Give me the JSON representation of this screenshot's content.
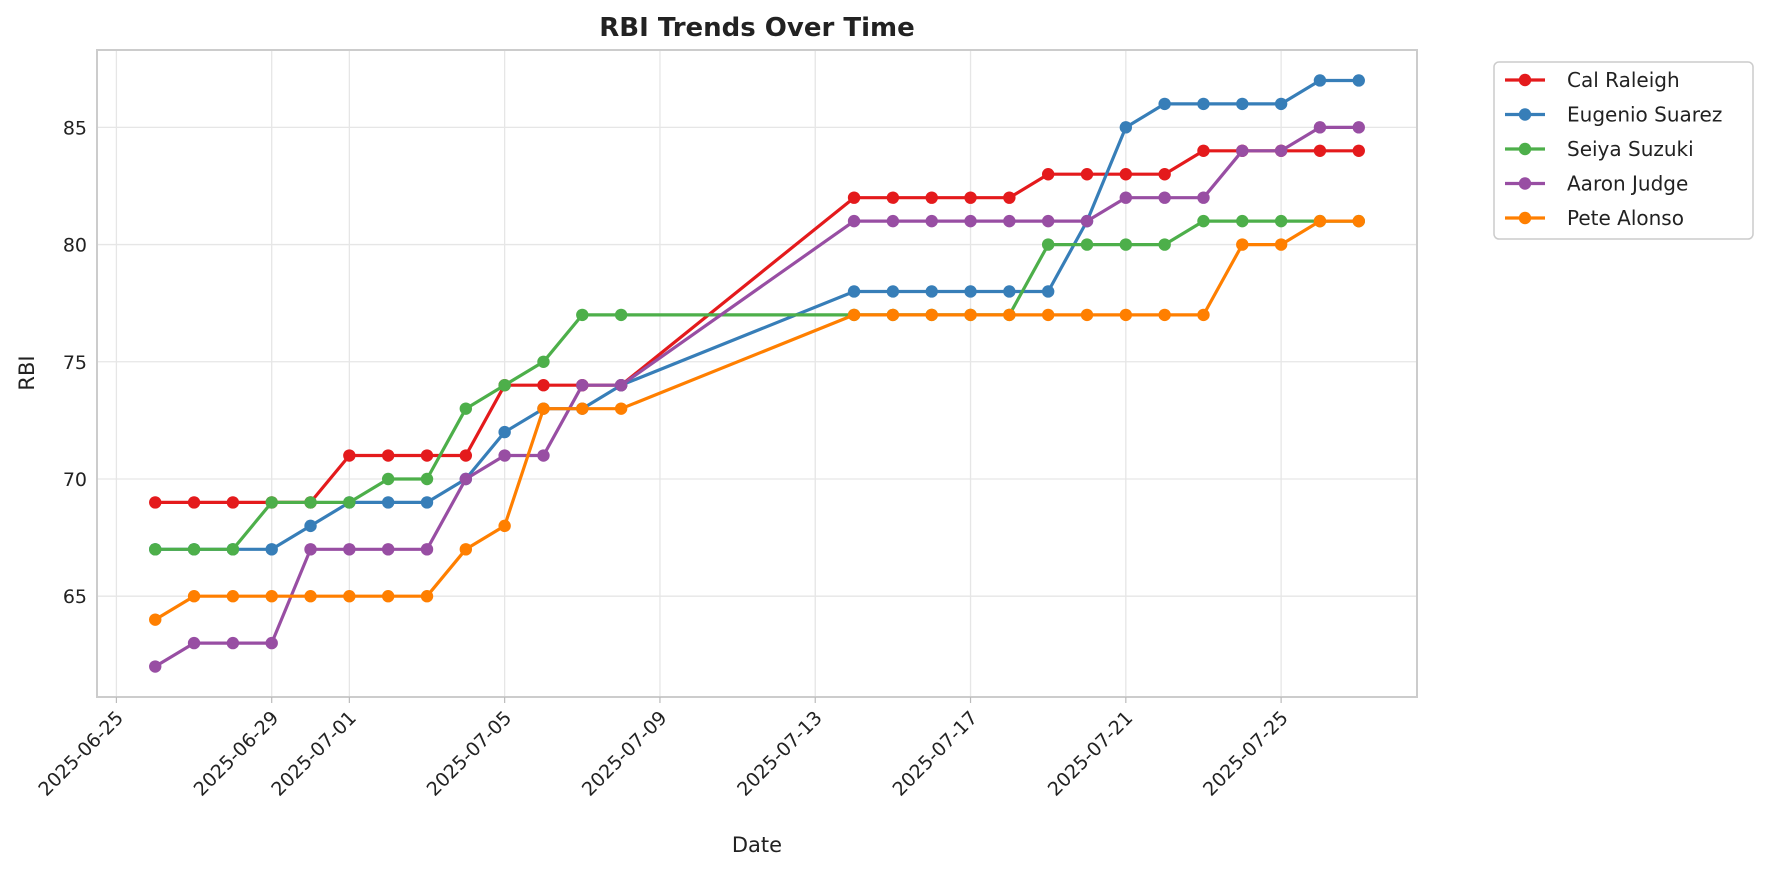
{
  "chart_data": {
    "type": "line",
    "title": "RBI Trends Over Time",
    "xlabel": "Date",
    "ylabel": "RBI",
    "x": [
      "2025-06-26",
      "2025-06-27",
      "2025-06-28",
      "2025-06-29",
      "2025-06-30",
      "2025-07-01",
      "2025-07-02",
      "2025-07-03",
      "2025-07-04",
      "2025-07-05",
      "2025-07-06",
      "2025-07-07",
      "2025-07-08",
      "2025-07-14",
      "2025-07-15",
      "2025-07-16",
      "2025-07-17",
      "2025-07-18",
      "2025-07-19",
      "2025-07-20",
      "2025-07-21",
      "2025-07-22",
      "2025-07-23",
      "2025-07-24",
      "2025-07-25",
      "2025-07-26",
      "2025-07-27"
    ],
    "xlim": [
      "2025-06-24T12:00",
      "2025-07-28T12:00"
    ],
    "ylim": [
      60.7,
      88.3
    ],
    "x_ticks": [
      "2025-06-25",
      "2025-06-29",
      "2025-07-01",
      "2025-07-05",
      "2025-07-09",
      "2025-07-13",
      "2025-07-17",
      "2025-07-21",
      "2025-07-25"
    ],
    "y_ticks": [
      65,
      70,
      75,
      80,
      85
    ],
    "grid": true,
    "legend_position": "outside-top-right",
    "series": [
      {
        "name": "Cal Raleigh",
        "color": "#e41a1c",
        "values": [
          69,
          69,
          69,
          69,
          69,
          71,
          71,
          71,
          71,
          74,
          74,
          74,
          74,
          82,
          82,
          82,
          82,
          82,
          83,
          83,
          83,
          83,
          84,
          84,
          84,
          84,
          84
        ]
      },
      {
        "name": "Eugenio Suarez",
        "color": "#377eb8",
        "values": [
          67,
          67,
          67,
          67,
          68,
          69,
          69,
          69,
          70,
          72,
          73,
          73,
          74,
          78,
          78,
          78,
          78,
          78,
          78,
          81,
          85,
          86,
          86,
          86,
          86,
          87,
          87
        ]
      },
      {
        "name": "Seiya Suzuki",
        "color": "#4daf4a",
        "values": [
          67,
          67,
          67,
          69,
          69,
          69,
          70,
          70,
          73,
          74,
          75,
          77,
          77,
          77,
          77,
          77,
          77,
          77,
          80,
          80,
          80,
          80,
          81,
          81,
          81,
          81,
          81
        ]
      },
      {
        "name": "Aaron Judge",
        "color": "#984ea3",
        "values": [
          62,
          63,
          63,
          63,
          67,
          67,
          67,
          67,
          70,
          71,
          71,
          74,
          74,
          81,
          81,
          81,
          81,
          81,
          81,
          81,
          82,
          82,
          82,
          84,
          84,
          85,
          85
        ]
      },
      {
        "name": "Pete Alonso",
        "color": "#ff7f00",
        "values": [
          64,
          65,
          65,
          65,
          65,
          65,
          65,
          65,
          67,
          68,
          73,
          73,
          73,
          77,
          77,
          77,
          77,
          77,
          77,
          77,
          77,
          77,
          77,
          80,
          80,
          81,
          81
        ]
      }
    ]
  }
}
